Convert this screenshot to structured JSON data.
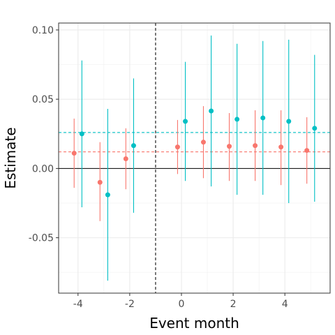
{
  "chart_data": {
    "type": "scatter",
    "title": "",
    "xlabel": "Event month",
    "ylabel": "Estimate",
    "xlim": [
      -4.75,
      5.75
    ],
    "ylim": [
      -0.09,
      0.105
    ],
    "x_ticks": [
      -4,
      -2,
      0,
      2,
      4
    ],
    "x_tick_labels": [
      "-4",
      "-2",
      "0",
      "2",
      "4"
    ],
    "y_ticks": [
      0.1,
      0.05,
      0.0,
      -0.05
    ],
    "y_tick_labels": [
      "0.10",
      "0.05",
      "0.00",
      "-0.05"
    ],
    "grid": true,
    "legend": "none",
    "reference_lines": {
      "horizontal_zero": 0,
      "vertical_event": -1
    },
    "series": [
      {
        "color": "#F8766D",
        "mean_line": 0.012,
        "points": [
          {
            "x": -4,
            "y": 0.011,
            "lo": -0.014,
            "hi": 0.036
          },
          {
            "x": -3,
            "y": -0.01,
            "lo": -0.038,
            "hi": 0.019
          },
          {
            "x": -2,
            "y": 0.007,
            "lo": -0.015,
            "hi": 0.029
          },
          {
            "x": 0,
            "y": 0.0155,
            "lo": -0.004,
            "hi": 0.035
          },
          {
            "x": 1,
            "y": 0.019,
            "lo": -0.007,
            "hi": 0.045
          },
          {
            "x": 2,
            "y": 0.016,
            "lo": -0.009,
            "hi": 0.04
          },
          {
            "x": 3,
            "y": 0.0165,
            "lo": -0.009,
            "hi": 0.042
          },
          {
            "x": 4,
            "y": 0.0155,
            "lo": -0.012,
            "hi": 0.042
          },
          {
            "x": 5,
            "y": 0.013,
            "lo": -0.011,
            "hi": 0.037
          }
        ]
      },
      {
        "color": "#00BFC4",
        "mean_line": 0.026,
        "points": [
          {
            "x": -4,
            "y": 0.025,
            "lo": -0.028,
            "hi": 0.078
          },
          {
            "x": -3,
            "y": -0.019,
            "lo": -0.081,
            "hi": 0.043
          },
          {
            "x": -2,
            "y": 0.0165,
            "lo": -0.032,
            "hi": 0.065
          },
          {
            "x": 0,
            "y": 0.034,
            "lo": -0.009,
            "hi": 0.077
          },
          {
            "x": 1,
            "y": 0.0415,
            "lo": -0.013,
            "hi": 0.096
          },
          {
            "x": 2,
            "y": 0.0355,
            "lo": -0.019,
            "hi": 0.09
          },
          {
            "x": 3,
            "y": 0.0365,
            "lo": -0.019,
            "hi": 0.092
          },
          {
            "x": 4,
            "y": 0.034,
            "lo": -0.025,
            "hi": 0.093
          },
          {
            "x": 5,
            "y": 0.029,
            "lo": -0.024,
            "hi": 0.082
          }
        ]
      }
    ]
  }
}
